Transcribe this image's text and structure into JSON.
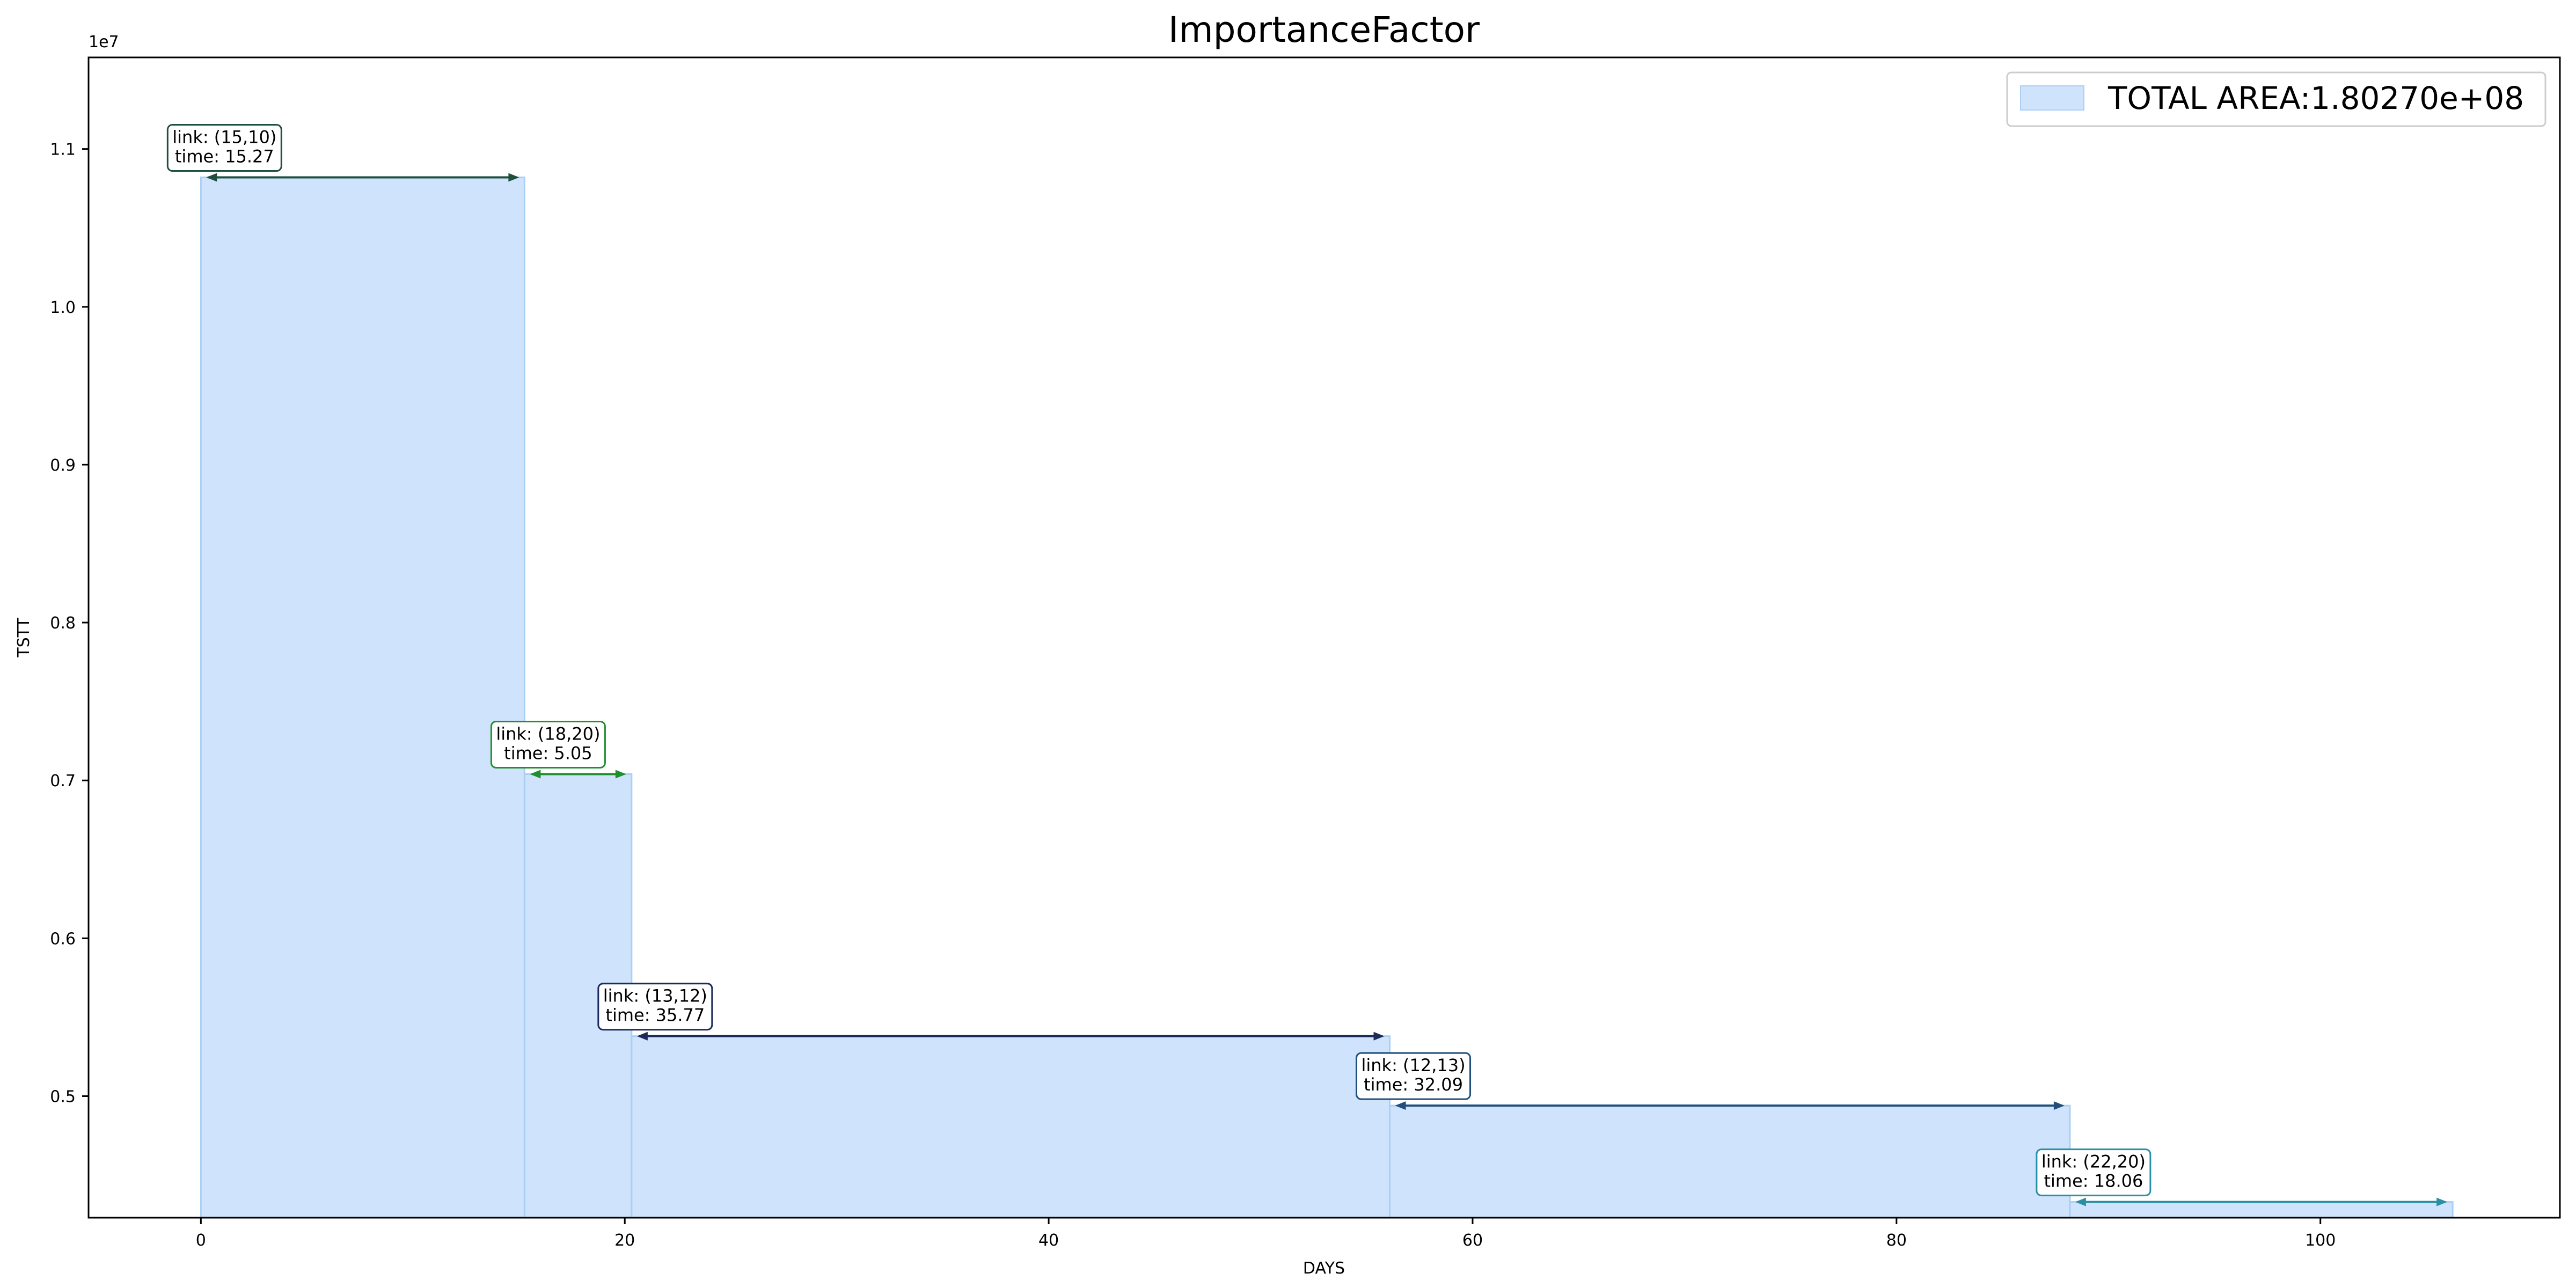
{
  "chart_data": {
    "type": "area",
    "title": "ImportanceFactor",
    "xlabel": "DAYS",
    "ylabel": "TSTT",
    "y_offset_label": "1e7",
    "xlim": [
      -5.3,
      111.3
    ],
    "ylim": [
      4230000.0,
      11580000.0
    ],
    "x_ticks": [
      0,
      20,
      40,
      60,
      80,
      100
    ],
    "x_tick_labels": [
      "0",
      "20",
      "40",
      "60",
      "80",
      "100"
    ],
    "y_ticks": [
      5000000.0,
      6000000.0,
      7000000.0,
      8000000.0,
      9000000.0,
      10000000.0,
      11000000.0
    ],
    "y_tick_labels": [
      "0.5",
      "0.6",
      "0.7",
      "0.8",
      "0.9",
      "1.0",
      "1.1"
    ],
    "grid": false,
    "legend_position": "top-right",
    "series": [
      {
        "name": "TOTAL AREA:1.80270e+08",
        "color": "#cfe3fc",
        "edge_color": "#a9cff3",
        "steps": [
          {
            "x_start": 0.0,
            "x_end": 15.27,
            "y": 10820000.0
          },
          {
            "x_start": 15.27,
            "x_end": 20.32,
            "y": 7040000.0
          },
          {
            "x_start": 20.32,
            "x_end": 56.09,
            "y": 5380000.0
          },
          {
            "x_start": 56.09,
            "x_end": 88.18,
            "y": 4940000.0
          },
          {
            "x_start": 88.18,
            "x_end": 106.24,
            "y": 4330000.0
          }
        ]
      }
    ],
    "annotations": [
      {
        "link": "link: (15,10)",
        "time": "time: 15.27",
        "x_start": 0.0,
        "x_end": 15.27,
        "y": 10820000.0,
        "color": "#1f4f3f"
      },
      {
        "link": "link: (18,20)",
        "time": "time: 5.05",
        "x_start": 15.27,
        "x_end": 20.32,
        "y": 7040000.0,
        "color": "#1f8f2f"
      },
      {
        "link": "link: (13,12)",
        "time": "time: 35.77",
        "x_start": 20.32,
        "x_end": 56.09,
        "y": 5380000.0,
        "color": "#1c2a5a"
      },
      {
        "link": "link: (12,13)",
        "time": "time: 32.09",
        "x_start": 56.09,
        "x_end": 88.18,
        "y": 4940000.0,
        "color": "#1f4f7a"
      },
      {
        "link": "link: (22,20)",
        "time": "time: 18.06",
        "x_start": 88.18,
        "x_end": 106.24,
        "y": 4330000.0,
        "color": "#2a8fa5"
      }
    ]
  }
}
